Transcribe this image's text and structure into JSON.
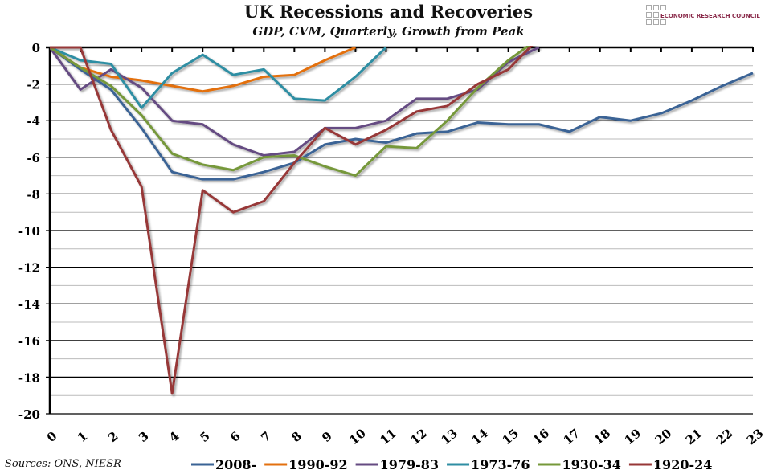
{
  "chart_data": {
    "type": "line",
    "title": "UK Recessions and Recoveries",
    "subtitle": "GDP, CVM, Quarterly, Growth from Peak",
    "source": "Sources: ONS, NIESR",
    "logo_text": "ECONOMIC RESEARCH COUNCIL",
    "xlim": [
      0,
      23
    ],
    "ylim": [
      -20,
      0
    ],
    "x_ticks": [
      0,
      1,
      2,
      3,
      4,
      5,
      6,
      7,
      8,
      9,
      10,
      11,
      12,
      13,
      14,
      15,
      16,
      17,
      18,
      19,
      20,
      21,
      22,
      23
    ],
    "y_ticks": [
      0,
      -2,
      -4,
      -6,
      -8,
      -10,
      -12,
      -14,
      -16,
      -18,
      -20
    ],
    "grid": true,
    "legend_position": "bottom",
    "series": [
      {
        "name": "2008-",
        "color": "#3a6395",
        "values": [
          0,
          -1.2,
          -2.3,
          -4.4,
          -6.8,
          -7.2,
          -7.2,
          -6.8,
          -6.3,
          -5.3,
          -5.0,
          -5.2,
          -4.7,
          -4.6,
          -4.1,
          -4.2,
          -4.2,
          -4.6,
          -3.8,
          -4.0,
          -3.6,
          -2.9,
          -2.1,
          -1.4
        ]
      },
      {
        "name": "1990-92",
        "color": "#e3700f",
        "values": [
          0,
          -1.1,
          -1.6,
          -1.8,
          -2.1,
          -2.4,
          -2.1,
          -1.6,
          -1.5,
          -0.7,
          0
        ]
      },
      {
        "name": "1979-83",
        "color": "#654b82",
        "values": [
          0,
          -2.3,
          -1.2,
          -2.2,
          -4.0,
          -4.2,
          -5.3,
          -5.9,
          -5.7,
          -4.4,
          -4.4,
          -4.0,
          -2.8,
          -2.8,
          -2.3,
          -0.8,
          0
        ]
      },
      {
        "name": "1973-76",
        "color": "#2f8ea3",
        "values": [
          0,
          -0.7,
          -0.9,
          -3.3,
          -1.4,
          -0.4,
          -1.5,
          -1.2,
          -2.8,
          -2.9,
          -1.6,
          0
        ]
      },
      {
        "name": "1930-34",
        "color": "#76983a",
        "values": [
          0,
          -1.1,
          -2.1,
          -3.7,
          -5.8,
          -6.4,
          -6.7,
          -6.0,
          -5.9,
          -6.5,
          -7.0,
          -5.4,
          -5.5,
          -4.0,
          -2.2,
          -0.7,
          0.5
        ]
      },
      {
        "name": "1920-24",
        "color": "#973737",
        "values": [
          0,
          0,
          -4.5,
          -7.6,
          -18.9,
          -7.8,
          -9.0,
          -8.4,
          -6.3,
          -4.4,
          -5.3,
          -4.5,
          -3.5,
          -3.2,
          -2.0,
          -1.2,
          0.5
        ]
      }
    ]
  }
}
